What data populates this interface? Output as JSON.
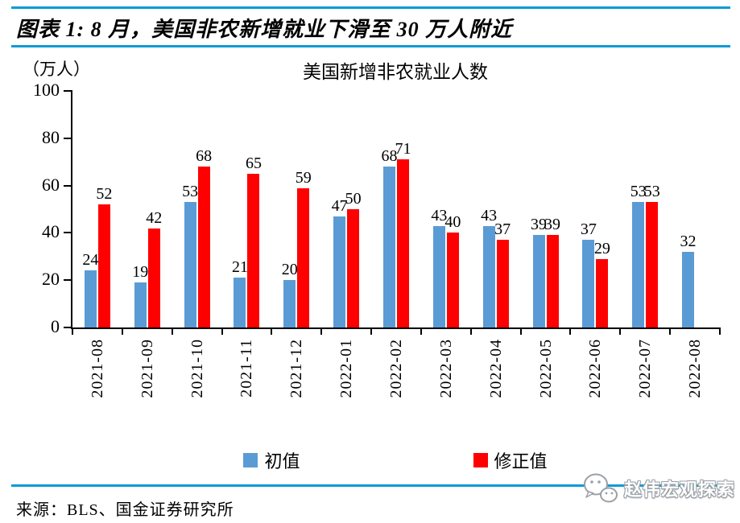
{
  "header": {
    "title": "图表 1: 8 月，美国非农新增就业下滑至 30 万人附近"
  },
  "chart_data": {
    "type": "bar",
    "title": "美国新增非农就业人数",
    "unit_label": "（万人）",
    "categories": [
      "2021-08",
      "2021-09",
      "2021-10",
      "2021-11",
      "2021-12",
      "2022-01",
      "2022-02",
      "2022-03",
      "2022-04",
      "2022-05",
      "2022-06",
      "2022-07",
      "2022-08"
    ],
    "series": [
      {
        "name": "初值",
        "color": "#5B9BD5",
        "values": [
          24,
          19,
          53,
          21,
          20,
          47,
          68,
          43,
          43,
          39,
          37,
          53,
          32
        ]
      },
      {
        "name": "修正值",
        "color": "#FF0000",
        "values": [
          52,
          42,
          68,
          65,
          59,
          50,
          71,
          40,
          37,
          39,
          29,
          53,
          null
        ]
      }
    ],
    "ylim": [
      0,
      100
    ],
    "yticks": [
      0,
      20,
      40,
      60,
      80,
      100
    ],
    "grid": false,
    "legend_position": "bottom",
    "data_labels": true
  },
  "footer": {
    "source": "来源：BLS、国金证券研究所",
    "watermark": "赵伟宏观探索",
    "watermark_icon": "chat-bubbles-icon"
  },
  "colors": {
    "accent_line": "#0B9BD7",
    "bar_initial": "#5B9BD5",
    "bar_revised": "#FF0000"
  }
}
